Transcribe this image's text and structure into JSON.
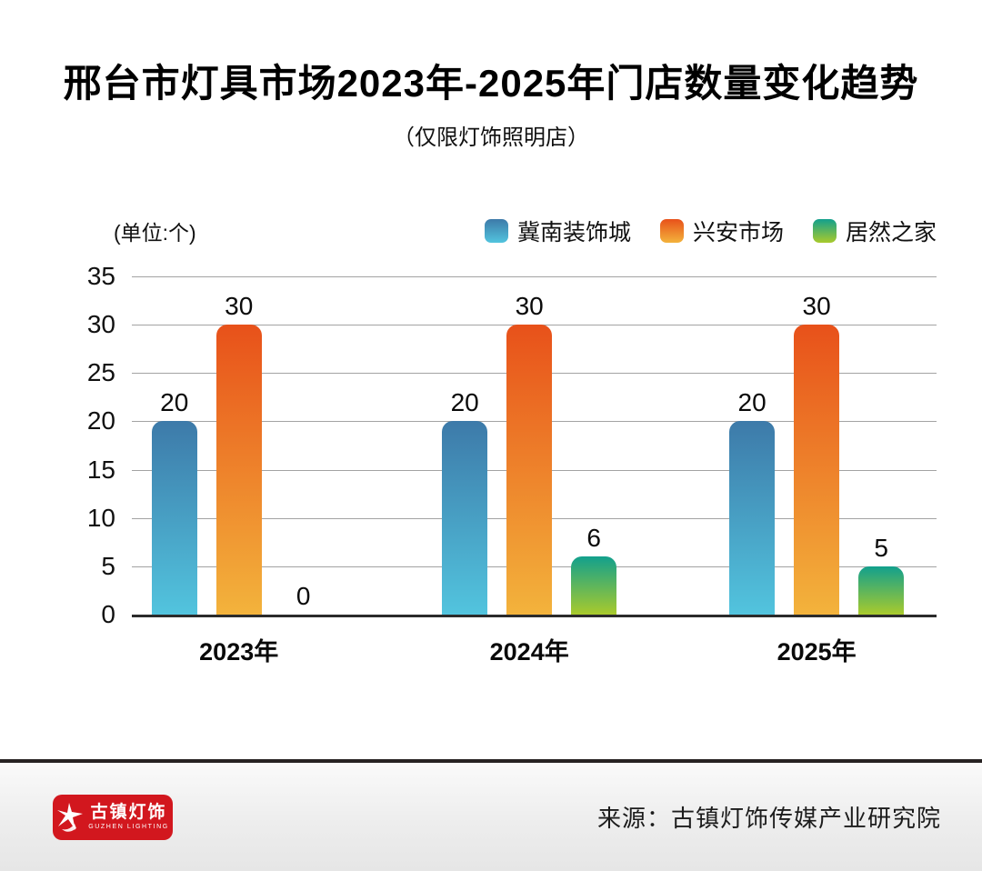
{
  "title": "邢台市灯具市场2023年-2025年门店数量变化趋势",
  "subtitle": "（仅限灯饰照明店）",
  "chart_data": {
    "type": "bar",
    "title": "邢台市灯具市场2023年-2025年门店数量变化趋势",
    "subtitle": "（仅限灯饰照明店）",
    "unit_label": "(单位:个)",
    "categories": [
      "2023年",
      "2024年",
      "2025年"
    ],
    "series": [
      {
        "name": "冀南装饰城",
        "values": [
          20,
          20,
          20
        ],
        "gradient": [
          "#3d7aa9",
          "#52c4de"
        ]
      },
      {
        "name": "兴安市场",
        "values": [
          30,
          30,
          30
        ],
        "gradient": [
          "#e8511a",
          "#f3b33c"
        ]
      },
      {
        "name": "居然之家",
        "values": [
          0,
          6,
          5
        ],
        "gradient": [
          "#12a08d",
          "#a9ca2c"
        ]
      }
    ],
    "ylim": [
      0,
      35
    ],
    "ytick_step": 5,
    "grid": true,
    "legend_position": "top-right",
    "value_labels_shown": true
  },
  "footer": {
    "source": "来源：古镇灯饰传媒产业研究院",
    "logo_text": "古镇灯饰",
    "logo_subtext": "GUZHEN LIGHTING",
    "logo_color": "#d2171e"
  }
}
